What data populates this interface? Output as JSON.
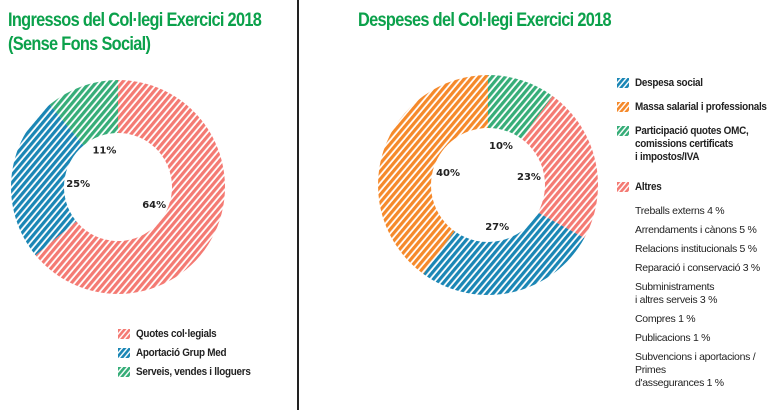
{
  "chart_data": [
    {
      "type": "pie",
      "title": "Ingressos del Col·legi Exercici 2018",
      "subtitle": "(Sense Fons Social)",
      "donut": true,
      "legend_position": "bottom",
      "series": [
        {
          "name": "Quotes col·legials",
          "value": 64,
          "label": "64%",
          "color": "#f47a73"
        },
        {
          "name": "Aportació Grup Med",
          "value": 25,
          "label": "25%",
          "color": "#1a86b5"
        },
        {
          "name": "Serveis, vendes i lloguers",
          "value": 11,
          "label": "11%",
          "color": "#36ad78"
        }
      ]
    },
    {
      "type": "pie",
      "title": "Despeses del Col·legi Exercici 2018",
      "donut": true,
      "legend_position": "right",
      "series": [
        {
          "name": "Participació quotes OMC,\ncomissions certificats\ni impostos/IVA",
          "value": 10,
          "label": "10%",
          "color": "#36ad78"
        },
        {
          "name": "Altres",
          "value": 23,
          "label": "23%",
          "color": "#f47a73"
        },
        {
          "name": "Despesa social",
          "value": 27,
          "label": "27%",
          "color": "#1a86b5"
        },
        {
          "name": "Massa salarial i professionals",
          "value": 40,
          "label": "40%",
          "color": "#f5892a"
        }
      ],
      "legend_order": [
        2,
        3,
        0,
        1
      ],
      "altres_breakdown": [
        "Treballs externs   4 %",
        "Arrendaments i cànons   5 %",
        "Relacions institucionals   5 %",
        "Reparació i conservació   3 %",
        "Subministraments\ni altres serveis   3 %",
        "Compres   1 %",
        "Publicacions   1 %",
        "Subvencions i aportacions / Primes\nd'assegurances   1 %"
      ]
    }
  ]
}
